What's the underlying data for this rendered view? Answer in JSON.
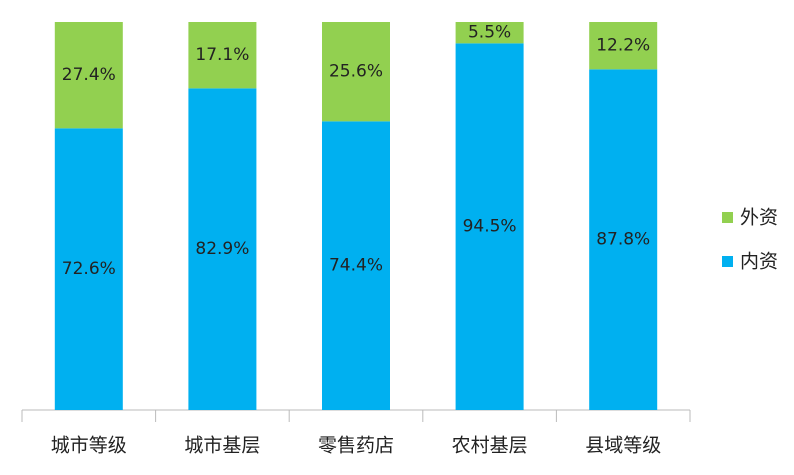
{
  "chart_data": {
    "type": "bar",
    "stacked": true,
    "categories": [
      "城市等级",
      "城市基层",
      "零售药店",
      "农村基层",
      "县域等级"
    ],
    "series": [
      {
        "name": "内资",
        "color": "#00b0f0",
        "values": [
          72.6,
          82.9,
          74.4,
          94.5,
          87.8
        ],
        "value_labels": [
          "72.6%",
          "82.9%",
          "74.4%",
          "94.5%",
          "87.8%"
        ]
      },
      {
        "name": "外资",
        "color": "#92d050",
        "values": [
          27.4,
          17.1,
          25.6,
          5.5,
          12.2
        ],
        "value_labels": [
          "27.4%",
          "17.1%",
          "25.6%",
          "5.5%",
          "12.2%"
        ]
      }
    ],
    "ylim": [
      0,
      100
    ],
    "legend": "right"
  }
}
